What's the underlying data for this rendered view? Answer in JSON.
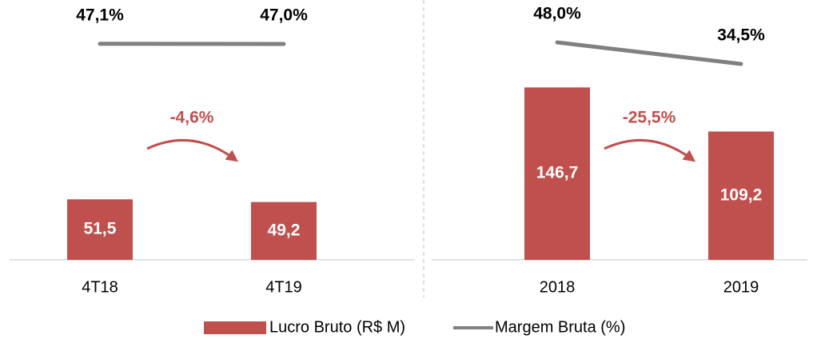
{
  "chart_data": [
    {
      "type": "bar_line",
      "categories": [
        "4T18",
        "4T19"
      ],
      "series": [
        {
          "values": [
            51.5,
            49.2
          ],
          "value_labels": [
            "51,5",
            "49,2"
          ]
        },
        {
          "values": [
            47.1,
            47.0
          ],
          "value_labels": [
            "47,1%",
            "47,0%"
          ],
          "axis": "y2"
        }
      ],
      "annotation": "-4,6%",
      "ylim": [
        0,
        200
      ],
      "y2lim": [
        -20,
        60
      ]
    },
    {
      "type": "bar_line",
      "categories": [
        "2018",
        "2019"
      ],
      "series": [
        {
          "values": [
            146.7,
            109.2
          ],
          "value_labels": [
            "146,7",
            "109,2"
          ]
        },
        {
          "values": [
            48.0,
            34.5
          ],
          "value_labels": [
            "48,0%",
            "34,5%"
          ],
          "axis": "y2"
        }
      ],
      "annotation": "-25,5%",
      "ylim": [
        0,
        200
      ],
      "y2lim": [
        -20,
        60
      ]
    }
  ],
  "legend": [
    {
      "name": "Lucro Bruto (R$ M)",
      "color": "#c0504d"
    },
    {
      "name": "Margem Bruta (%)",
      "color": "#808080"
    }
  ]
}
